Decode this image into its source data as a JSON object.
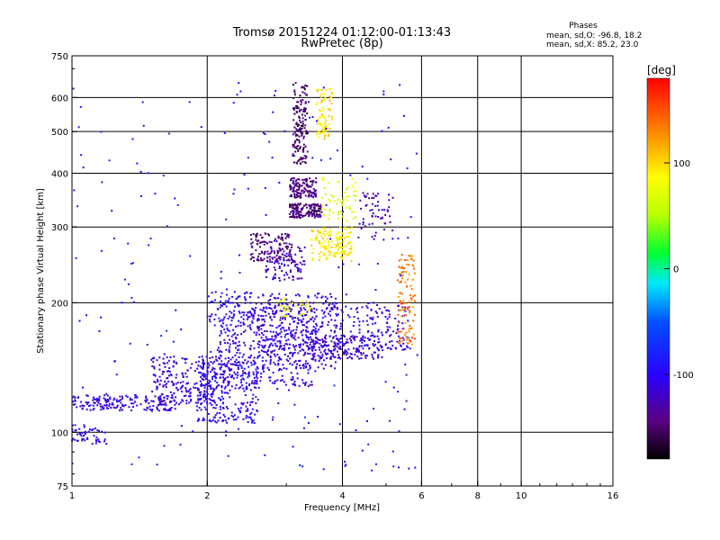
{
  "chart_data": {
    "type": "scatter",
    "title": "Tromsø 20151224 01:12:00-01:13:43",
    "subtitle": "RwPretec (8p)",
    "xlabel": "Frequency [MHz]",
    "ylabel": "Stationary phase Virtual Height [km]",
    "xscale": "log",
    "yscale": "log",
    "xlim": [
      1,
      16
    ],
    "ylim": [
      75,
      750
    ],
    "xticks": [
      1,
      2,
      4,
      6,
      8,
      10,
      16
    ],
    "yticks": [
      75,
      100,
      200,
      300,
      400,
      500,
      600,
      750
    ],
    "x_gridlines": [
      2,
      4,
      6,
      8,
      10
    ],
    "y_gridlines": [
      100,
      200,
      300,
      400,
      500,
      600
    ],
    "grid": true,
    "legend": {
      "title": "Phases",
      "lines": [
        "mean, sd,O: -96.8, 18.2",
        "mean, sd,X: 85.2, 23.0"
      ],
      "placement": "top-right"
    },
    "colorbar": {
      "label": "[deg]",
      "ticks": [
        100,
        0,
        -100
      ],
      "range": [
        -180,
        180
      ],
      "colormap": "rainbow"
    },
    "clusters": [
      {
        "x": [
          1.0,
          1.7
        ],
        "y": [
          112,
          122
        ],
        "phase": -108,
        "count": 170
      },
      {
        "x": [
          1.0,
          1.2
        ],
        "y": [
          94,
          104
        ],
        "phase": -110,
        "count": 50
      },
      {
        "x": [
          1.5,
          2.1
        ],
        "y": [
          115,
          150
        ],
        "phase": -112,
        "count": 220
      },
      {
        "x": [
          1.9,
          2.6
        ],
        "y": [
          105,
          150
        ],
        "phase": -105,
        "count": 260
      },
      {
        "x": [
          2.1,
          3.5
        ],
        "y": [
          125,
          200
        ],
        "phase": -110,
        "count": 420
      },
      {
        "x": [
          2.0,
          2.6
        ],
        "y": [
          175,
          215
        ],
        "phase": -100,
        "count": 80
      },
      {
        "x": [
          2.6,
          3.9
        ],
        "y": [
          140,
          210
        ],
        "phase": -112,
        "count": 300
      },
      {
        "x": [
          3.3,
          4.9
        ],
        "y": [
          148,
          168
        ],
        "phase": -115,
        "count": 170
      },
      {
        "x": [
          3.8,
          5.6
        ],
        "y": [
          155,
          200
        ],
        "phase": -108,
        "count": 160
      },
      {
        "x": [
          2.5,
          3.1
        ],
        "y": [
          250,
          290
        ],
        "phase": -145,
        "count": 130
      },
      {
        "x": [
          2.7,
          3.3
        ],
        "y": [
          225,
          270
        ],
        "phase": -120,
        "count": 90
      },
      {
        "x": [
          3.05,
          3.6
        ],
        "y": [
          315,
          340
        ],
        "phase": -145,
        "count": 150
      },
      {
        "x": [
          3.05,
          3.5
        ],
        "y": [
          350,
          390
        ],
        "phase": -140,
        "count": 130
      },
      {
        "x": [
          3.1,
          3.35
        ],
        "y": [
          420,
          650
        ],
        "phase": -150,
        "count": 150
      },
      {
        "x": [
          3.5,
          3.8
        ],
        "y": [
          480,
          630
        ],
        "phase": 95,
        "count": 80
      },
      {
        "x": [
          3.4,
          4.2
        ],
        "y": [
          250,
          300
        ],
        "phase": 90,
        "count": 150
      },
      {
        "x": [
          3.6,
          4.3
        ],
        "y": [
          310,
          390
        ],
        "phase": 70,
        "count": 60
      },
      {
        "x": [
          4.3,
          5.2
        ],
        "y": [
          280,
          360
        ],
        "phase": -125,
        "count": 60
      },
      {
        "x": [
          5.3,
          5.8
        ],
        "y": [
          160,
          260
        ],
        "phase": 135,
        "count": 110
      },
      {
        "x": [
          2.9,
          3.4
        ],
        "y": [
          185,
          205
        ],
        "phase": 75,
        "count": 35
      },
      {
        "x": [
          1.0,
          5.9
        ],
        "y": [
          80,
          650
        ],
        "phase": -90,
        "count": 220
      }
    ]
  }
}
